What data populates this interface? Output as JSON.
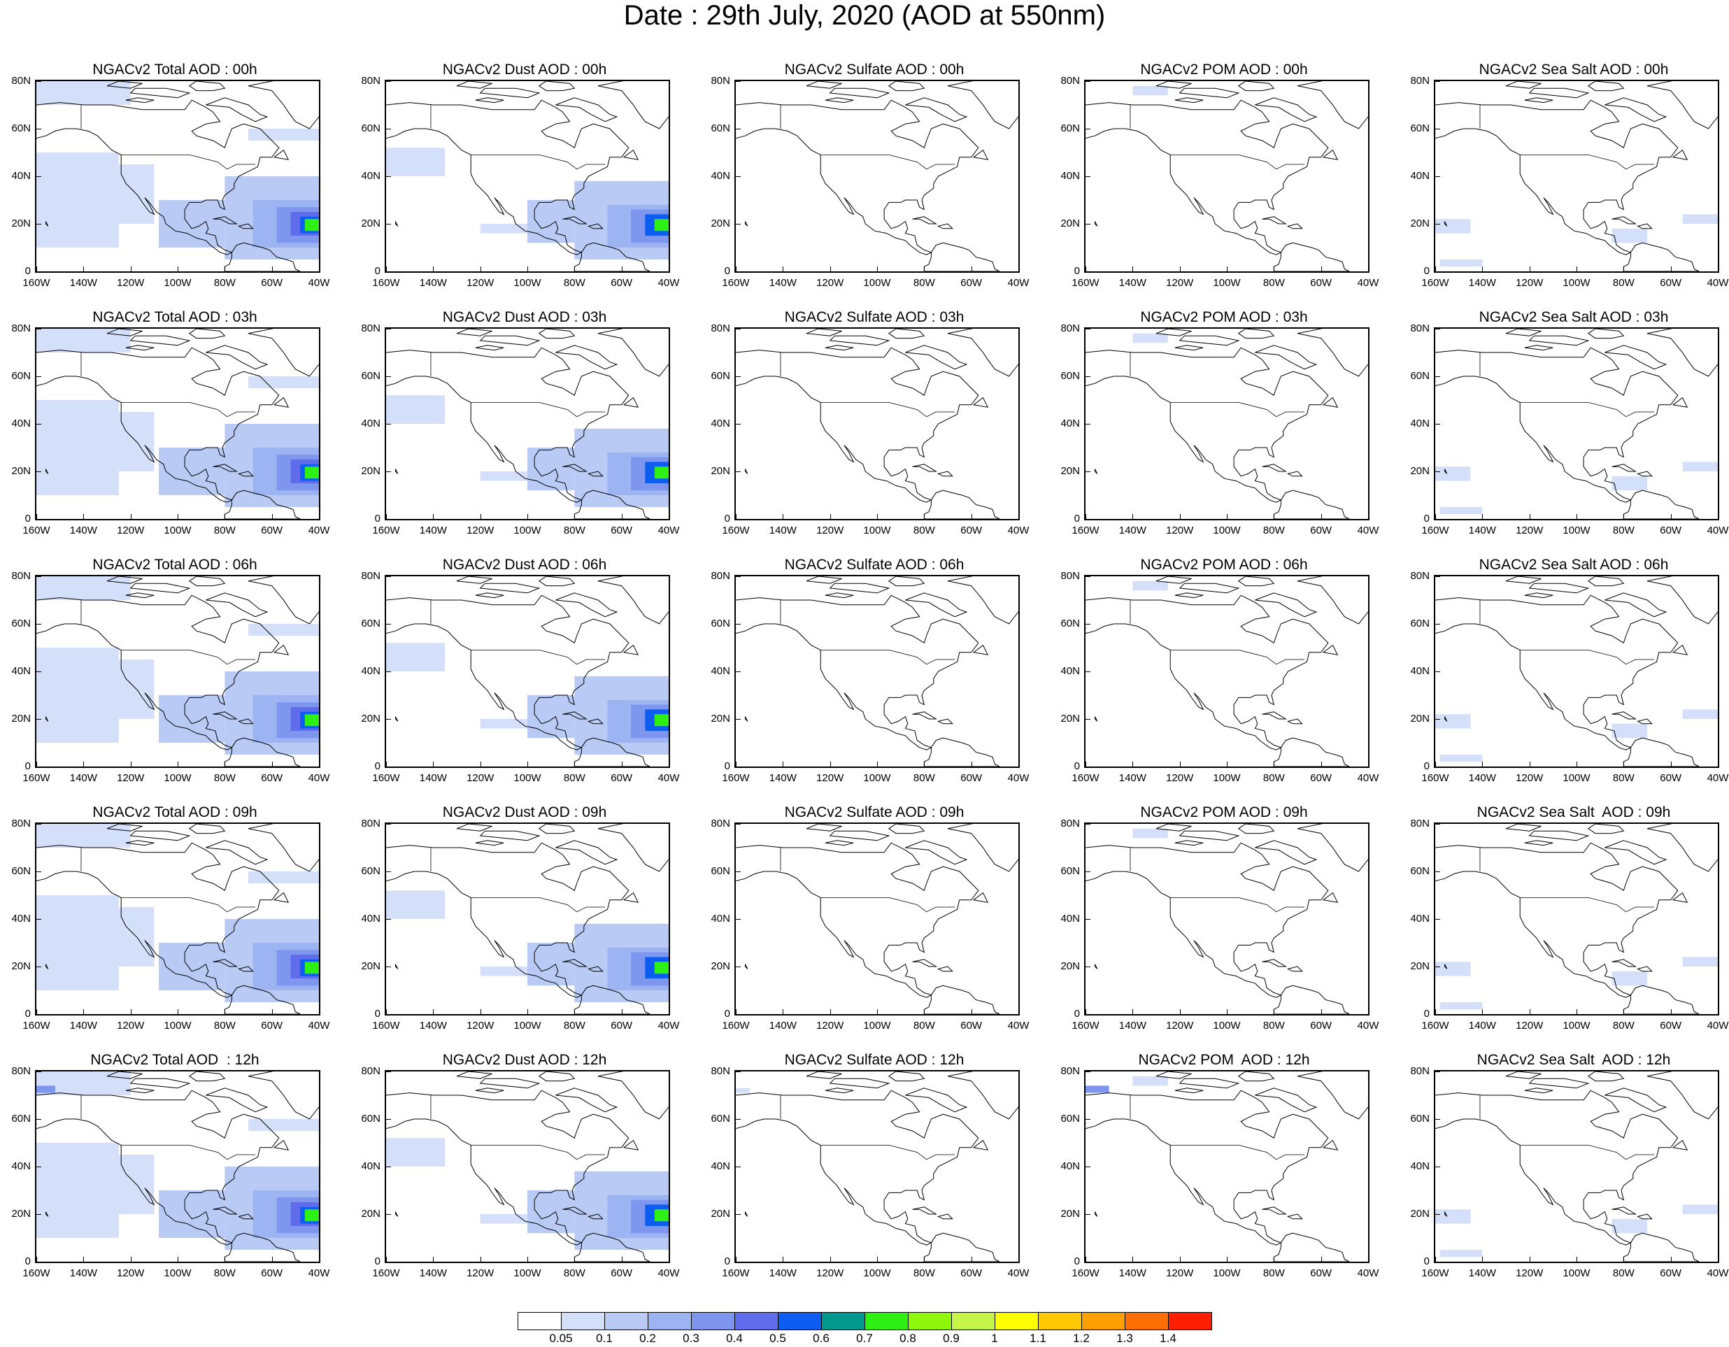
{
  "title": "Date : 29th July, 2020 (AOD at 550nm)",
  "latitude_ticks": [
    "80N",
    "60N",
    "40N",
    "20N",
    "0"
  ],
  "longitude_ticks": [
    "160W",
    "140W",
    "120W",
    "100W",
    "80W",
    "60W",
    "40W"
  ],
  "map_extent": {
    "lon": [
      -160,
      -40
    ],
    "lat": [
      0,
      80
    ]
  },
  "panel_titles": [
    [
      "NGACv2 Total AOD : 00h",
      "NGACv2 Dust AOD : 00h",
      "NGACv2 Sulfate AOD : 00h",
      "NGACv2 POM AOD : 00h",
      "NGACv2 Sea Salt AOD : 00h"
    ],
    [
      "NGACv2 Total AOD : 03h",
      "NGACv2 Dust AOD : 03h",
      "NGACv2 Sulfate AOD : 03h",
      "NGACv2 POM AOD : 03h",
      "NGACv2 Sea Salt AOD : 03h"
    ],
    [
      "NGACv2 Total AOD : 06h",
      "NGACv2 Dust AOD : 06h",
      "NGACv2 Sulfate AOD : 06h",
      "NGACv2 POM AOD : 06h",
      "NGACv2 Sea Salt AOD : 06h"
    ],
    [
      "NGACv2 Total AOD : 09h",
      "NGACv2 Dust AOD : 09h",
      "NGACv2 Sulfate AOD : 09h",
      "NGACv2 POM AOD : 09h",
      "NGACv2 Sea Salt  AOD : 09h"
    ],
    [
      "NGACv2 Total AOD  : 12h",
      "NGACv2 Dust AOD : 12h",
      "NGACv2 Sulfate AOD : 12h",
      "NGACv2 POM  AOD : 12h",
      "NGACv2 Sea Salt  AOD : 12h"
    ]
  ],
  "colorbar": {
    "labels": [
      "0.05",
      "0.1",
      "0.2",
      "0.3",
      "0.4",
      "0.5",
      "0.6",
      "0.7",
      "0.8",
      "0.9",
      "1",
      "1.1",
      "1.2",
      "1.3",
      "1.4"
    ],
    "colors": [
      "#ffffff",
      "#d4e0fa",
      "#b9caf5",
      "#9cb4f2",
      "#7f96ee",
      "#5f6ded",
      "#0d5df0",
      "#00998f",
      "#2ff014",
      "#8ef70a",
      "#c6f54a",
      "#ffff00",
      "#ffc800",
      "#ffa000",
      "#ff6e00",
      "#ff1e00"
    ]
  }
}
